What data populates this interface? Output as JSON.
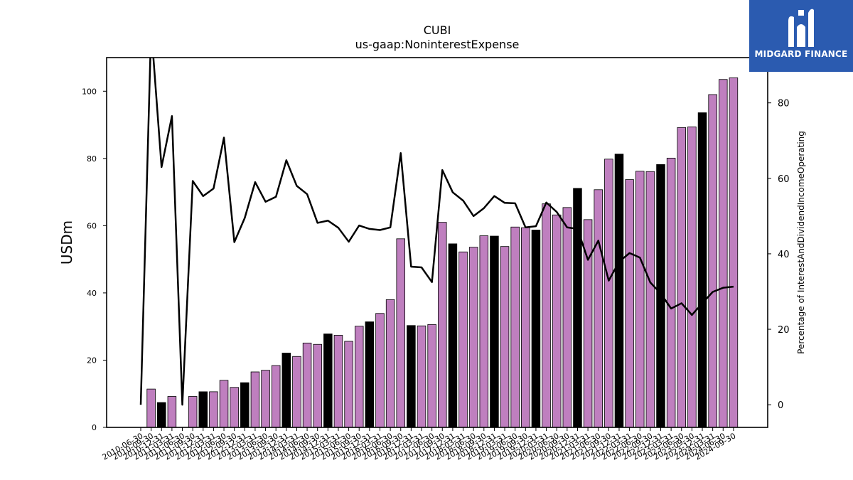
{
  "brand": {
    "name": "MIDGARD FINANCE",
    "icon": "midgard-logo-icon"
  },
  "chart_data": {
    "type": "bar",
    "title": "CUBI",
    "subtitle": "us-gaap:NoninterestExpense",
    "ylabel": "USDm",
    "y2label": "Percentage of InterestAndDividendIncomeOperating",
    "ylim": [
      0,
      110
    ],
    "y2lim": [
      -6,
      92
    ],
    "yticks": [
      0,
      20,
      40,
      60,
      80,
      100
    ],
    "y2ticks": [
      0,
      20,
      40,
      60,
      80
    ],
    "colors": {
      "quarter": "#bf7fbf",
      "annual": "#000000",
      "line": "#000000"
    },
    "categories": [
      "2010-06-30",
      "2010-09-30",
      "2010-12-31",
      "2011-03-31",
      "2011-06-30",
      "2011-09-30",
      "2011-12-31",
      "2012-03-31",
      "2012-06-30",
      "2012-09-30",
      "2012-12-31",
      "2013-03-31",
      "2013-06-30",
      "2013-09-30",
      "2013-12-31",
      "2014-03-31",
      "2014-06-30",
      "2014-09-30",
      "2014-12-31",
      "2015-03-31",
      "2015-06-30",
      "2015-09-30",
      "2015-12-31",
      "2016-03-31",
      "2016-06-30",
      "2016-09-30",
      "2016-12-31",
      "2017-03-31",
      "2017-06-30",
      "2017-09-30",
      "2017-12-31",
      "2018-03-31",
      "2018-06-30",
      "2018-09-30",
      "2018-12-31",
      "2019-03-31",
      "2019-06-30",
      "2019-09-30",
      "2019-12-31",
      "2020-03-31",
      "2020-06-30",
      "2020-09-30",
      "2020-12-31",
      "2021-03-31",
      "2021-06-30",
      "2021-09-30",
      "2021-12-31",
      "2022-03-31",
      "2022-06-30",
      "2022-09-30",
      "2022-12-31",
      "2023-03-31",
      "2023-06-30",
      "2023-09-30",
      "2023-12-31",
      "2024-03-31",
      "2024-06-30",
      "2024-09-30"
    ],
    "xticklabels": [
      "2010-06-30",
      "2010-09-30",
      "2010-12-31",
      "2011-03-31",
      "2011-06-30",
      "2011-09-30",
      "2011-12-31",
      "2012-03-31",
      "2012-06-30",
      "2012-09-30",
      "2012-12-31",
      "2013-03-31",
      "2013-06-30",
      "2013-09-30",
      "2013-12-31",
      "2014-03-31",
      "2014-06-30",
      "2014-09-30",
      "2014-12-31",
      "2015-03-31",
      "2015-06-30",
      "2015-09-30",
      "2015-12-31",
      "2016-03-31",
      "2016-06-30",
      "2016-09-30",
      "2016-12-31",
      "2017-03-31",
      "2017-06-30",
      "2017-09-30",
      "2017-12-31",
      "2018-03-31",
      "2018-06-30",
      "2018-09-30",
      "2018-12-31",
      "2019-03-31",
      "2019-06-30",
      "2019-09-30",
      "2019-12-31",
      "2020-03-31",
      "2020-06-30",
      "2020-09-30",
      "2020-12-31",
      "2021-03-31",
      "2021-06-30",
      "2021-09-30",
      "2021-12-31",
      "2022-03-31",
      "2022-06-30",
      "2022-09-30",
      "2022-12-31",
      "2023-03-31",
      "2023-06-30",
      "2023-09-30",
      "2023-12-31",
      "2024-03-31",
      "2024-06-30",
      "2024-09-30"
    ],
    "values": [
      null,
      11.4,
      7.4,
      9.2,
      null,
      9.2,
      10.6,
      10.6,
      14.0,
      11.9,
      13.3,
      16.5,
      17.0,
      18.4,
      22.1,
      21.1,
      25.1,
      24.7,
      27.8,
      27.4,
      25.6,
      30.1,
      31.4,
      33.9,
      38.0,
      56.1,
      30.3,
      30.2,
      30.6,
      61.0,
      54.6,
      52.2,
      53.6,
      57.0,
      56.9,
      53.8,
      59.6,
      59.4,
      58.7,
      66.5,
      63.2,
      65.4,
      71.1,
      61.8,
      70.7,
      79.8,
      81.3,
      73.7,
      76.2,
      76.1,
      78.2,
      80.1,
      89.2,
      89.4,
      93.6,
      99.0,
      103.5,
      104.0
    ],
    "annual": [
      false,
      false,
      true,
      false,
      false,
      false,
      true,
      false,
      false,
      false,
      true,
      false,
      false,
      false,
      true,
      false,
      false,
      false,
      true,
      false,
      false,
      false,
      true,
      false,
      false,
      false,
      true,
      false,
      false,
      false,
      true,
      false,
      false,
      false,
      true,
      false,
      false,
      false,
      true,
      false,
      false,
      false,
      true,
      false,
      false,
      false,
      true,
      false,
      false,
      false,
      true,
      false,
      false,
      false,
      true,
      false,
      false,
      false
    ],
    "series": [
      {
        "axis": "y2",
        "type": "line",
        "values": [
          0,
          100,
          63,
          76.5,
          0,
          59.3,
          55.3,
          57.3,
          70.8,
          43.1,
          49.5,
          59.0,
          53.8,
          55.1,
          64.8,
          58.0,
          55.8,
          48.2,
          48.8,
          46.9,
          43.2,
          47.5,
          46.6,
          46.3,
          47.0,
          66.7,
          36.6,
          36.4,
          32.5,
          62.2,
          56.3,
          54.1,
          50.0,
          52.1,
          55.3,
          53.5,
          53.4,
          47.0,
          47.3,
          53.6,
          51.1,
          47.0,
          46.6,
          38.4,
          43.5,
          32.9,
          37.9,
          40.2,
          39.0,
          32.4,
          29.5,
          25.5,
          26.9,
          23.8,
          26.9,
          29.9,
          31.0,
          31.3
        ]
      }
    ]
  }
}
